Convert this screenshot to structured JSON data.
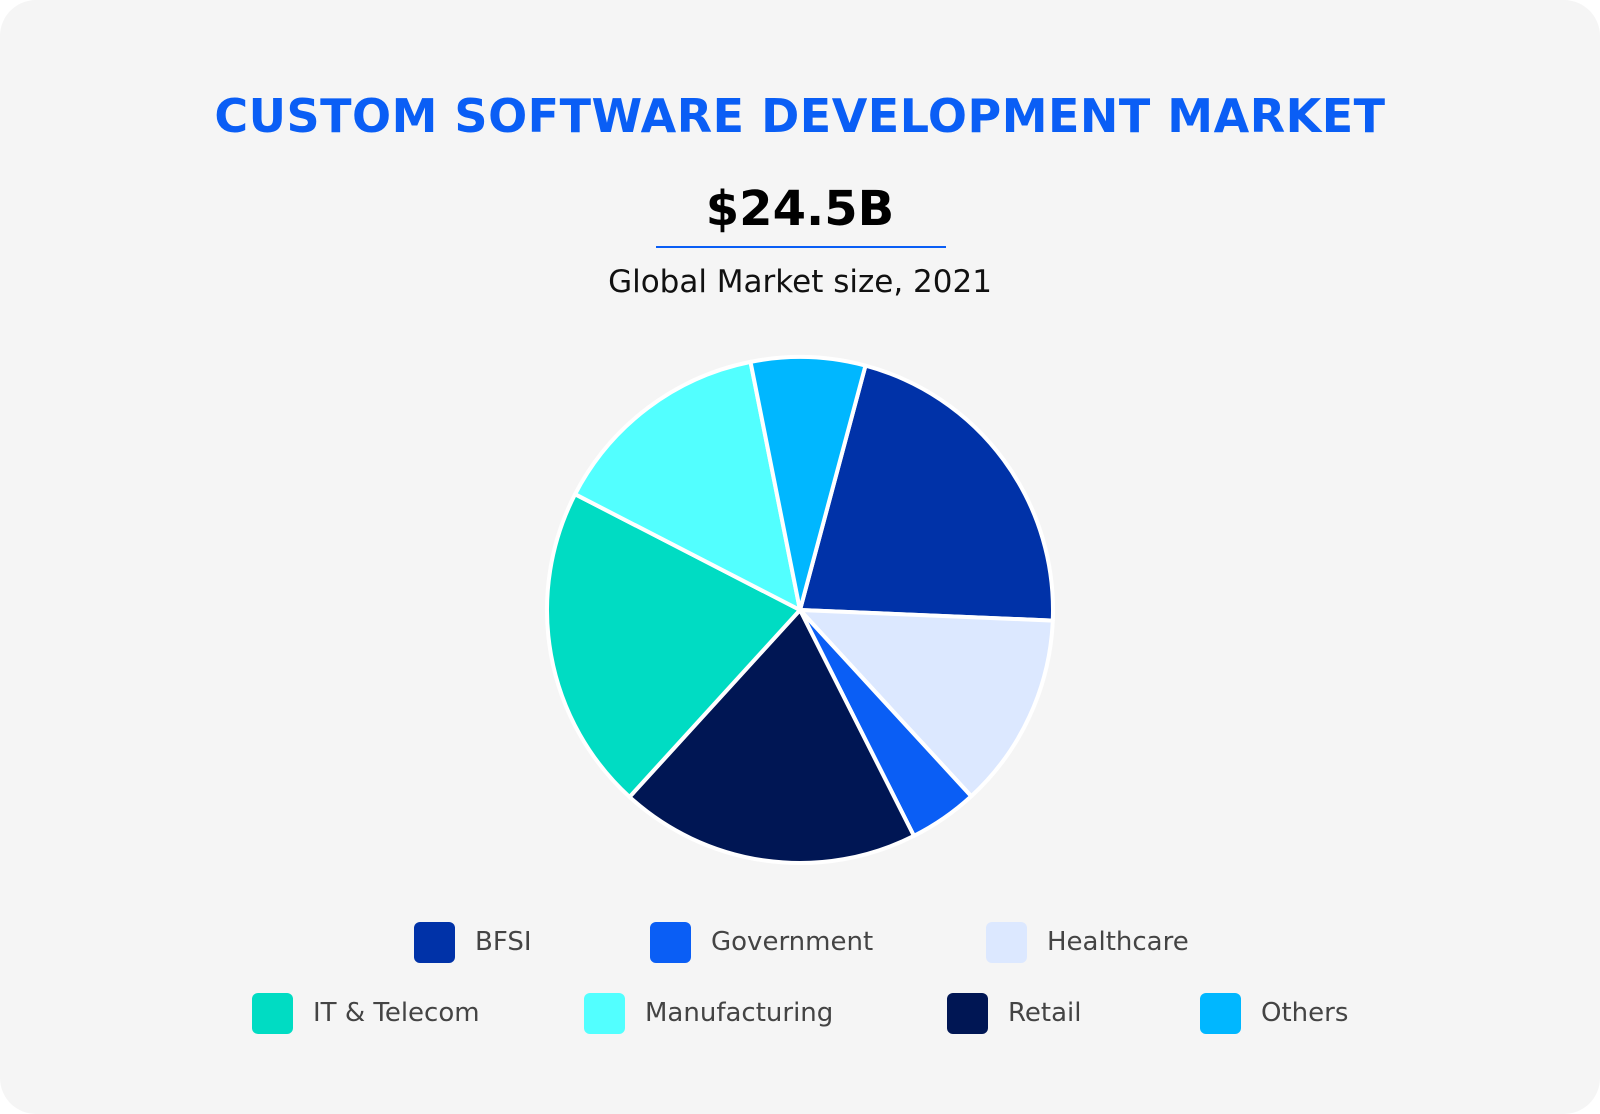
{
  "header": {
    "title": "CUSTOM SOFTWARE DEVELOPMENT MARKET",
    "value": "$24.5B",
    "subtitle": "Global Market size, 2021"
  },
  "chart_data": {
    "type": "pie",
    "title": "CUSTOM SOFTWARE DEVELOPMENT MARKET",
    "start_angle_deg": 15,
    "slices": [
      {
        "name": "BFSI",
        "value": 21.5,
        "color": "#0032a8"
      },
      {
        "name": "Healthcare",
        "value": 12.5,
        "color": "#dce8ff"
      },
      {
        "name": "Government",
        "value": 4.4,
        "color": "#0a5ef5"
      },
      {
        "name": "Retail",
        "value": 19.2,
        "color": "#001654"
      },
      {
        "name": "IT & Telecom",
        "value": 20.8,
        "color": "#00dcc3"
      },
      {
        "name": "Manufacturing",
        "value": 14.3,
        "color": "#52ffff"
      },
      {
        "name": "Others",
        "value": 7.3,
        "color": "#00b7ff"
      }
    ],
    "legend": {
      "placement": "bottom",
      "items": [
        {
          "name": "BFSI",
          "color": "#0032a8"
        },
        {
          "name": "Government",
          "color": "#0a5ef5"
        },
        {
          "name": "Healthcare",
          "color": "#dce8ff"
        },
        {
          "name": "IT & Telecom",
          "color": "#00dcc3"
        },
        {
          "name": "Manufacturing",
          "color": "#52ffff"
        },
        {
          "name": "Retail",
          "color": "#001654"
        },
        {
          "name": "Others",
          "color": "#00b7ff"
        }
      ]
    }
  }
}
